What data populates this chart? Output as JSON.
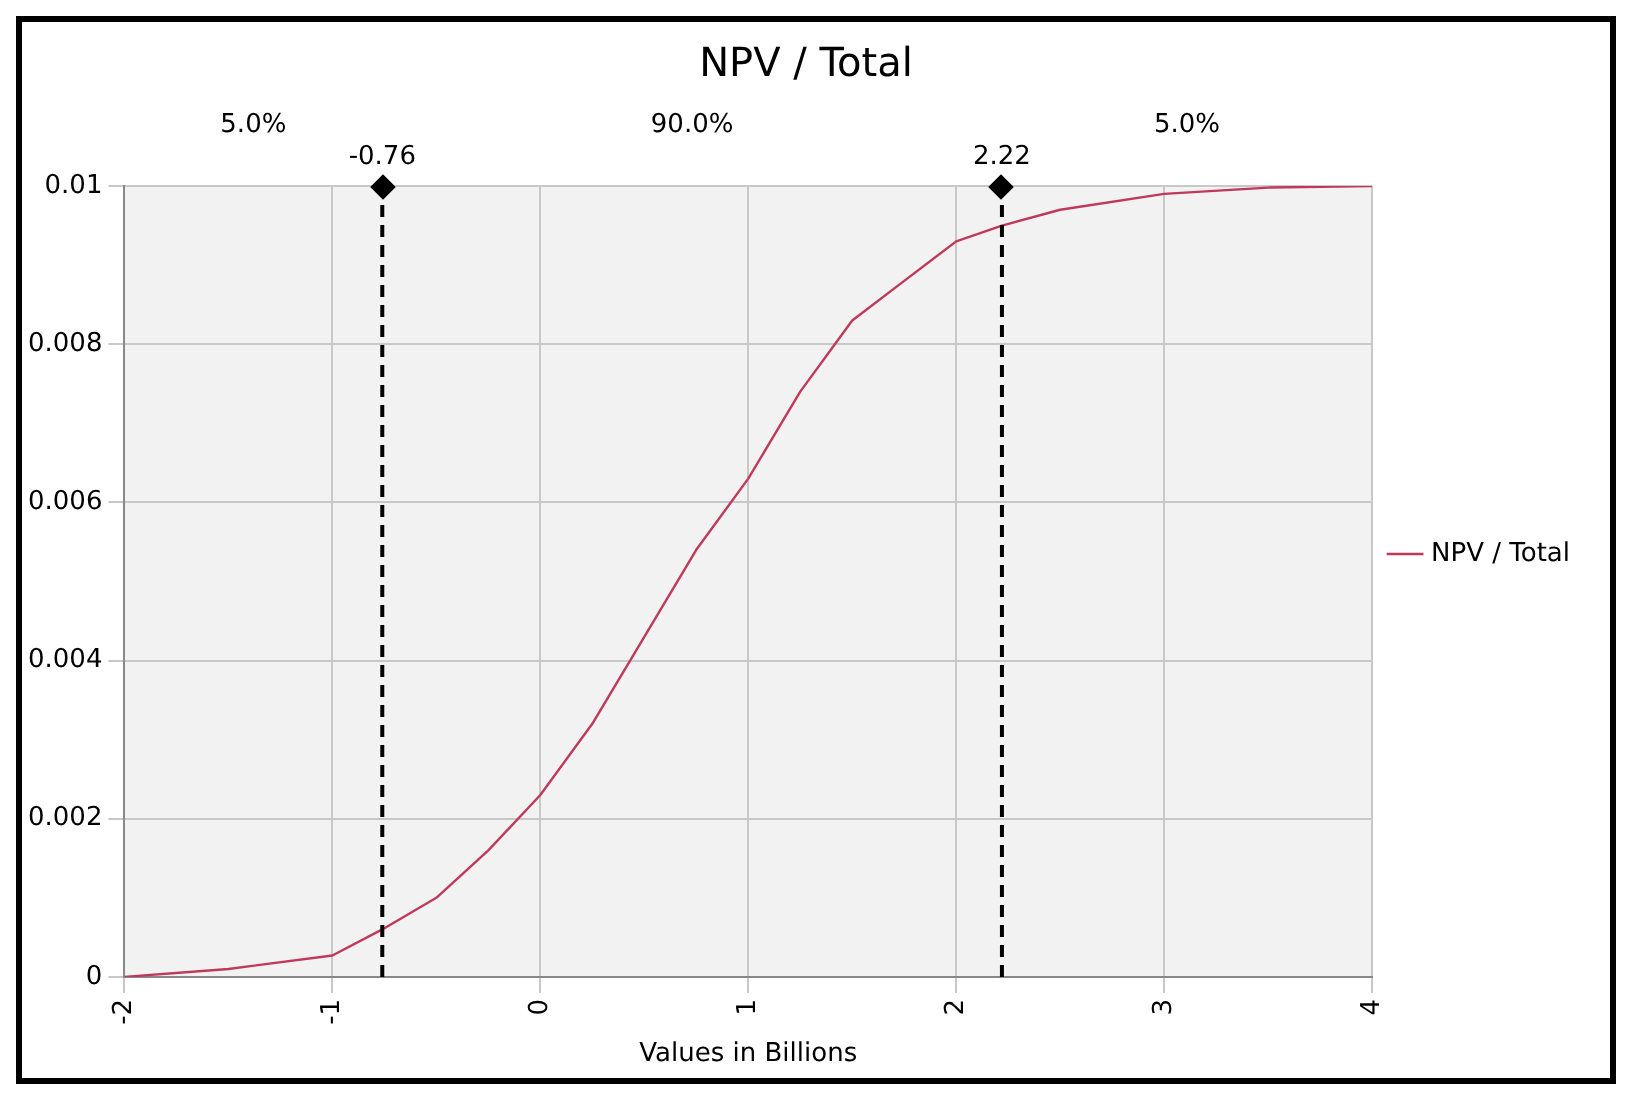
{
  "chart_data": {
    "type": "line",
    "title": "NPV / Total",
    "xlabel": "Values in Billions",
    "x": [
      -2,
      -1.5,
      -1,
      -0.76,
      -0.5,
      -0.25,
      0,
      0.25,
      0.5,
      0.75,
      1,
      1.25,
      1.5,
      1.75,
      2,
      2.22,
      2.5,
      3,
      3.5,
      4
    ],
    "series": [
      {
        "name": "NPV / Total",
        "color": "#c0395a",
        "values": [
          0,
          0.0001,
          0.00027,
          0.0006,
          0.001,
          0.0016,
          0.0023,
          0.0032,
          0.0043,
          0.0054,
          0.0063,
          0.0074,
          0.0083,
          0.0088,
          0.0093,
          0.0095,
          0.0097,
          0.0099,
          0.00998,
          0.01
        ]
      }
    ],
    "xlim": [
      -2,
      4
    ],
    "xticks": [
      -2,
      -1,
      0,
      1,
      2,
      3,
      4
    ],
    "ylim": [
      0,
      0.01
    ],
    "yticks": [
      0,
      0.002,
      0.004,
      0.006,
      0.008,
      0.01
    ],
    "ref_lines": [
      {
        "axis": "x",
        "value": -0.76,
        "label": "-0.76",
        "color": "#000000",
        "line_style": "dashed"
      },
      {
        "axis": "x",
        "value": 2.22,
        "label": "2.22",
        "color": "#000000",
        "line_style": "dashed"
      }
    ],
    "annotations": [
      "5.0%",
      "90.0%",
      "5.0%"
    ],
    "grid": true,
    "legend": "right",
    "marker": "none",
    "line_style": "solid"
  }
}
